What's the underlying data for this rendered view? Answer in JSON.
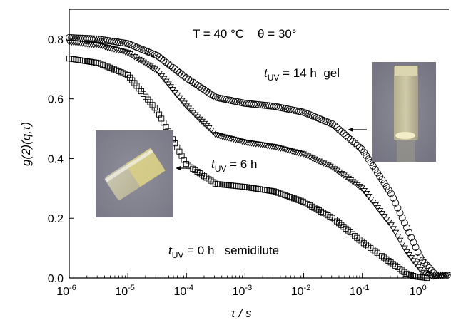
{
  "chart_data": {
    "type": "scatter",
    "title": "",
    "xlabel": "τ / s",
    "ylabel": "g(2)(q,τ)",
    "x_scale": "log",
    "xlim": [
      1e-06,
      3.0
    ],
    "ylim": [
      0.0,
      0.9
    ],
    "x_ticks": [
      {
        "base": "10",
        "exp": "-6"
      },
      {
        "base": "10",
        "exp": "-5"
      },
      {
        "base": "10",
        "exp": "-4"
      },
      {
        "base": "10",
        "exp": "-3"
      },
      {
        "base": "10",
        "exp": "-2"
      },
      {
        "base": "10",
        "exp": "-1"
      },
      {
        "base": "10",
        "exp": "0"
      }
    ],
    "y_ticks": [
      "0.0",
      "0.2",
      "0.4",
      "0.6",
      "0.8"
    ],
    "grid": false,
    "legend": "none",
    "conditions": "T = 40 °C    θ = 30°",
    "series": [
      {
        "marker": "circle",
        "log10_tau": [
          -6,
          -5.5,
          -5,
          -4.5,
          -4,
          -3.5,
          -3,
          -2.5,
          -2,
          -1.5,
          -1,
          -0.5,
          0,
          0.25,
          0.45
        ],
        "values": [
          0.805,
          0.8,
          0.785,
          0.745,
          0.67,
          0.605,
          0.585,
          0.575,
          0.555,
          0.515,
          0.43,
          0.28,
          0.065,
          0.01,
          0.01
        ]
      },
      {
        "marker": "triangle-down",
        "log10_tau": [
          -6,
          -5.5,
          -5,
          -4.5,
          -4,
          -3.5,
          -3,
          -2.5,
          -2,
          -1.5,
          -1,
          -0.5,
          -0.25,
          0,
          0.2,
          0.45
        ],
        "values": [
          0.79,
          0.78,
          0.755,
          0.695,
          0.575,
          0.48,
          0.455,
          0.44,
          0.415,
          0.37,
          0.3,
          0.175,
          0.09,
          0.025,
          0.005,
          0.01
        ]
      },
      {
        "marker": "square",
        "log10_tau": [
          -6,
          -5.5,
          -5,
          -4.5,
          -4,
          -3.5,
          -3,
          -2.5,
          -2,
          -1.5,
          -1,
          -0.5,
          -0.25,
          -0.1,
          0.1
        ],
        "values": [
          0.735,
          0.72,
          0.68,
          0.56,
          0.38,
          0.315,
          0.305,
          0.29,
          0.255,
          0.2,
          0.12,
          0.05,
          0.015,
          0.005,
          0.0
        ]
      }
    ],
    "annotations": [
      {
        "base": "t",
        "sub": "UV",
        "rest": " = 14 h  gel"
      },
      {
        "base": "t",
        "sub": "UV",
        "rest": " = 6 h"
      },
      {
        "base": "t",
        "sub": "UV",
        "rest": " = 0 h   semidilute"
      }
    ]
  }
}
